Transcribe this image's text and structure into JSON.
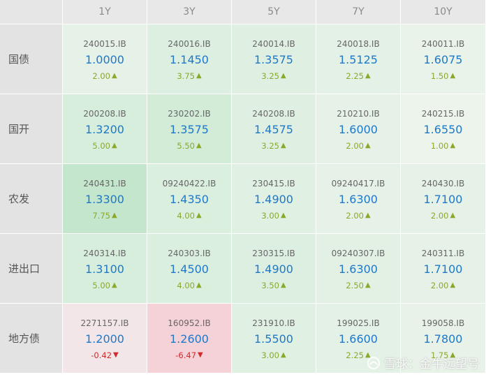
{
  "header": {
    "tenors": [
      "1Y",
      "3Y",
      "5Y",
      "7Y",
      "10Y"
    ]
  },
  "rows": [
    {
      "label": "国债",
      "cells": [
        {
          "code": "240015.IB",
          "rate": "1.0000",
          "change": "2.00",
          "dir": "up",
          "bg": "#e6f1e8"
        },
        {
          "code": "240016.IB",
          "rate": "1.1450",
          "change": "3.75",
          "dir": "up",
          "bg": "#dcefe0"
        },
        {
          "code": "240014.IB",
          "rate": "1.3575",
          "change": "3.25",
          "dir": "up",
          "bg": "#dff0e2"
        },
        {
          "code": "240018.IB",
          "rate": "1.5125",
          "change": "2.25",
          "dir": "up",
          "bg": "#e4f1e6"
        },
        {
          "code": "240011.IB",
          "rate": "1.6075",
          "change": "1.50",
          "dir": "up",
          "bg": "#e9f3ea"
        }
      ]
    },
    {
      "label": "国开",
      "cells": [
        {
          "code": "200208.IB",
          "rate": "1.3200",
          "change": "5.00",
          "dir": "up",
          "bg": "#d6eedb"
        },
        {
          "code": "230202.IB",
          "rate": "1.3575",
          "change": "5.50",
          "dir": "up",
          "bg": "#d2ecd8"
        },
        {
          "code": "240208.IB",
          "rate": "1.4575",
          "change": "3.25",
          "dir": "up",
          "bg": "#dff0e2"
        },
        {
          "code": "210210.IB",
          "rate": "1.6000",
          "change": "2.00",
          "dir": "up",
          "bg": "#e6f1e8"
        },
        {
          "code": "240215.IB",
          "rate": "1.6550",
          "change": "1.00",
          "dir": "up",
          "bg": "#ecf4ec"
        }
      ]
    },
    {
      "label": "农发",
      "cells": [
        {
          "code": "240431.IB",
          "rate": "1.3300",
          "change": "7.75",
          "dir": "up",
          "bg": "#c3e6cc"
        },
        {
          "code": "09240422.IB",
          "rate": "1.4350",
          "change": "4.00",
          "dir": "up",
          "bg": "#dbefdf"
        },
        {
          "code": "230415.IB",
          "rate": "1.4900",
          "change": "3.00",
          "dir": "up",
          "bg": "#e0f0e3"
        },
        {
          "code": "09240417.IB",
          "rate": "1.6300",
          "change": "2.00",
          "dir": "up",
          "bg": "#e6f1e8"
        },
        {
          "code": "240430.IB",
          "rate": "1.7100",
          "change": "2.00",
          "dir": "up",
          "bg": "#e6f1e8"
        }
      ]
    },
    {
      "label": "进出口",
      "cells": [
        {
          "code": "240314.IB",
          "rate": "1.3100",
          "change": "5.00",
          "dir": "up",
          "bg": "#d6eedb"
        },
        {
          "code": "240303.IB",
          "rate": "1.4500",
          "change": "4.00",
          "dir": "up",
          "bg": "#dbefdf"
        },
        {
          "code": "230315.IB",
          "rate": "1.4900",
          "change": "3.50",
          "dir": "up",
          "bg": "#ddefe1"
        },
        {
          "code": "09240307.IB",
          "rate": "1.6300",
          "change": "2.50",
          "dir": "up",
          "bg": "#e3f1e5"
        },
        {
          "code": "240311.IB",
          "rate": "1.7100",
          "change": "2.00",
          "dir": "up",
          "bg": "#e6f1e8"
        }
      ]
    },
    {
      "label": "地方债",
      "cells": [
        {
          "code": "2271157.IB",
          "rate": "1.2000",
          "change": "-0.42",
          "dir": "down",
          "bg": "#f3e6e8"
        },
        {
          "code": "160952.IB",
          "rate": "1.2600",
          "change": "-6.47",
          "dir": "down",
          "bg": "#f5d2d8"
        },
        {
          "code": "231910.IB",
          "rate": "1.5500",
          "change": "3.00",
          "dir": "up",
          "bg": "#e0f0e3"
        },
        {
          "code": "199025.IB",
          "rate": "1.6600",
          "change": "2.25",
          "dir": "up",
          "bg": "#e4f1e6"
        },
        {
          "code": "199058.IB",
          "rate": "1.7800",
          "change": "1.75",
          "dir": "up",
          "bg": "#e8f2e9"
        }
      ]
    }
  ],
  "colors": {
    "up": "#8aa82a",
    "down": "#d22a2a",
    "rate": "#1f78c8"
  },
  "watermark": {
    "text": "雪球：金牛远望号",
    "icon": "snowball-logo-icon"
  }
}
